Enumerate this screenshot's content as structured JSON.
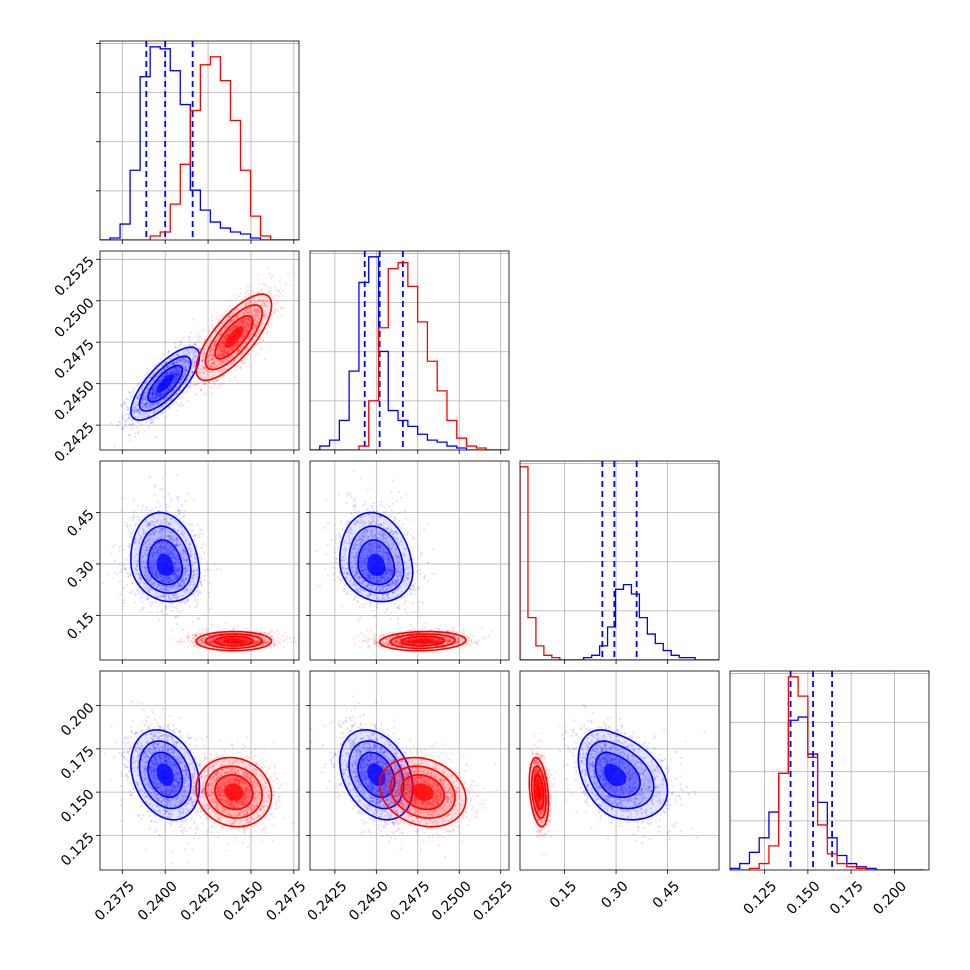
{
  "chart_data": {
    "type": "corner",
    "parameters": [
      {
        "range": [
          0.2362,
          0.2478
        ],
        "ticks": [
          0.2375,
          0.24,
          0.2425,
          0.245,
          0.2475
        ],
        "tick_labels": [
          "0.2375",
          "0.2400",
          "0.2425",
          "0.2450",
          "0.2475"
        ]
      },
      {
        "range": [
          0.241,
          0.253
        ],
        "ticks": [
          0.2425,
          0.245,
          0.2475,
          0.25,
          0.2525
        ],
        "tick_labels": [
          "0.2425",
          "0.2450",
          "0.2475",
          "0.2500",
          "0.2525"
        ]
      },
      {
        "range": [
          0.02,
          0.6
        ],
        "ticks": [
          0.15,
          0.3,
          0.45
        ],
        "tick_labels": [
          "0.15",
          "0.30",
          "0.45"
        ]
      },
      {
        "range": [
          0.105,
          0.22
        ],
        "ticks": [
          0.125,
          0.15,
          0.175,
          0.2
        ],
        "tick_labels": [
          "0.125",
          "0.150",
          "0.175",
          "0.200"
        ]
      }
    ],
    "series": [
      {
        "color": "#0000ff",
        "mean": [
          0.24,
          0.245,
          0.29,
          0.16
        ],
        "std": [
          0.001,
          0.0011,
          0.05,
          0.013
        ],
        "quantiles": [
          [
            0.2389,
            0.24,
            0.2416
          ],
          [
            0.2443,
            0.2452,
            0.2466
          ],
          [
            0.26,
            0.295,
            0.36
          ],
          [
            0.14,
            0.153,
            0.164
          ]
        ],
        "hist": [
          {
            "edges": [
              0.2362,
              0.2479
            ],
            "counts": [
              0,
              1,
              8,
              35,
              82,
              97,
              96,
              85,
              68,
              25,
              15,
              9,
              6,
              4,
              3,
              1,
              0,
              0,
              0,
              0
            ]
          },
          {
            "edges": [
              0.241,
              0.2528
            ],
            "counts": [
              0,
              2,
              5,
              15,
              40,
              85,
              98,
              50,
              20,
              15,
              12,
              8,
              5,
              4,
              2,
              1,
              0,
              0,
              0,
              0
            ]
          },
          {
            "edges": [
              0.02,
              0.6
            ],
            "counts": [
              0,
              0,
              0,
              0,
              0,
              0,
              0,
              0,
              1,
              2,
              6,
              14,
              30,
              32,
              28,
              18,
              11,
              7,
              4,
              2,
              1,
              1,
              0,
              0,
              0
            ]
          },
          {
            "edges": [
              0.105,
              0.2175
            ],
            "counts": [
              1,
              4,
              11,
              20,
              36,
              60,
              93,
              95,
              72,
              42,
              20,
              9,
              4,
              2,
              1,
              0,
              0,
              0,
              0,
              0
            ]
          }
        ]
      },
      {
        "color": "#ff0000",
        "mean": [
          0.244,
          0.2478,
          0.075,
          0.15
        ],
        "std": [
          0.0011,
          0.0013,
          0.014,
          0.01
        ],
        "quantiles": [],
        "hist": [
          {
            "edges": [
              0.2362,
              0.2479
            ],
            "counts": [
              0,
              0,
              0,
              0,
              0,
              2,
              4,
              18,
              38,
              65,
              88,
              92,
              80,
              60,
              35,
              12,
              2,
              0,
              0,
              0
            ]
          },
          {
            "edges": [
              0.241,
              0.2528
            ],
            "counts": [
              0,
              0,
              0,
              0,
              0,
              2,
              25,
              62,
              92,
              95,
              83,
              65,
              45,
              30,
              15,
              6,
              2,
              1,
              0,
              0
            ]
          },
          {
            "edges": [
              0.02,
              0.6
            ],
            "counts": [
              82,
              18,
              6,
              2,
              1,
              0,
              0,
              0,
              0,
              0,
              0,
              0,
              0,
              0,
              0,
              0,
              0,
              0,
              0,
              0,
              0,
              0,
              0,
              0,
              0
            ]
          },
          {
            "edges": [
              0.105,
              0.2175
            ],
            "counts": [
              0,
              0,
              1,
              4,
              15,
              60,
              120,
              108,
              70,
              28,
              10,
              4,
              2,
              1,
              0,
              0,
              0,
              0,
              0,
              0
            ]
          }
        ]
      }
    ],
    "grid": true
  }
}
